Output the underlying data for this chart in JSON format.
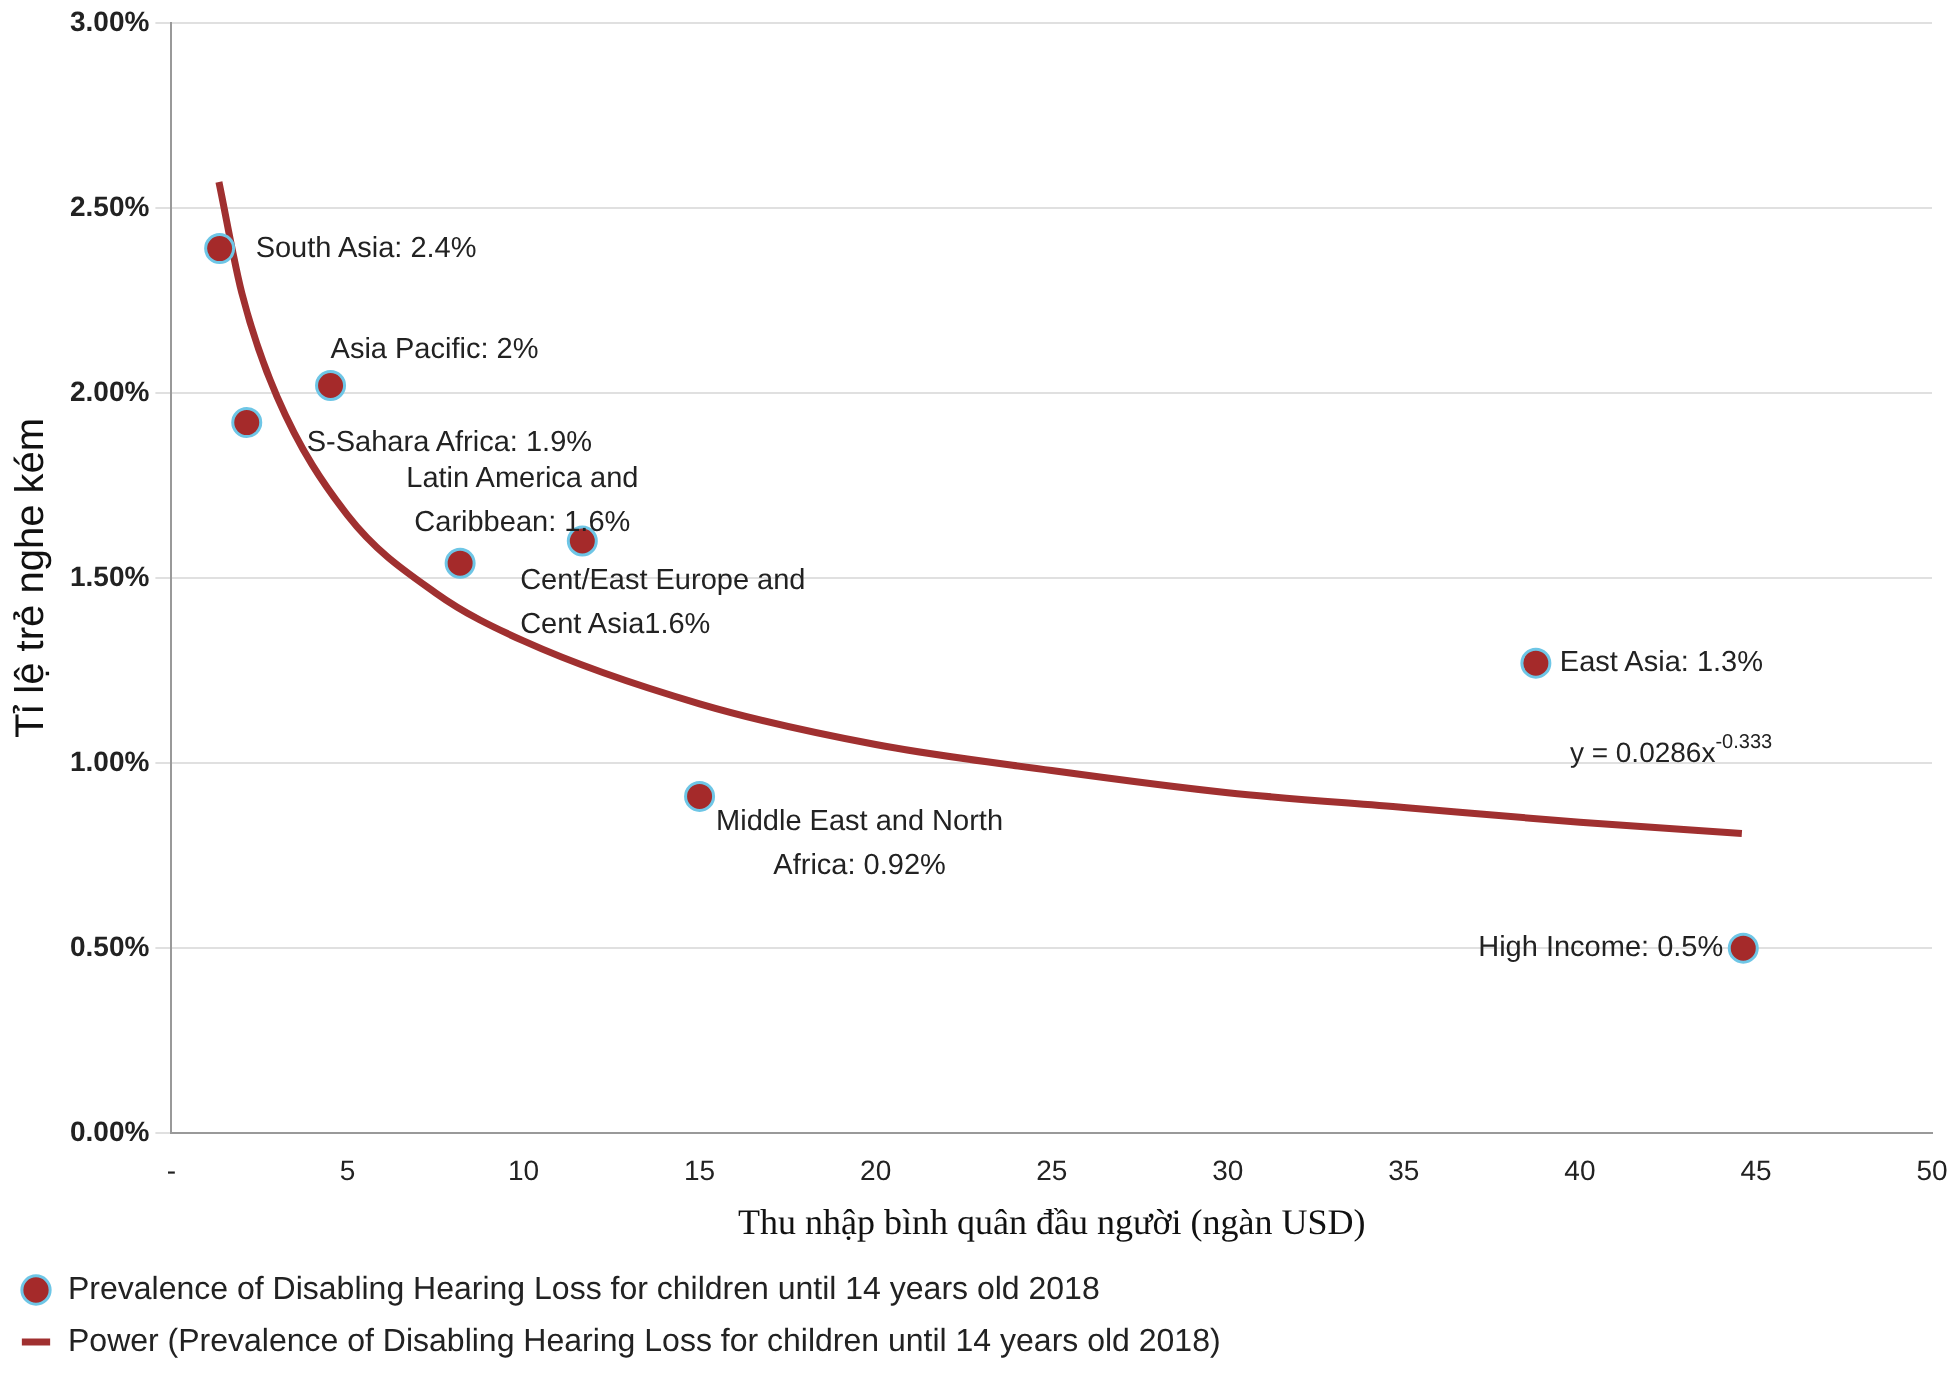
{
  "chart_data": {
    "type": "scatter",
    "xlabel": "Thu nhập bình quân đầu người (ngàn USD)",
    "ylabel": "Tỉ lệ trẻ nghe kém",
    "xlim": [
      0,
      50
    ],
    "xticks": [
      {
        "value": 0,
        "label": "-"
      },
      5,
      10,
      15,
      20,
      25,
      30,
      35,
      40,
      45,
      50
    ],
    "ylim": [
      0,
      3
    ],
    "yticks": [
      {
        "value": 0,
        "label": "0.00%"
      },
      {
        "value": 0.5,
        "label": "0.50%"
      },
      {
        "value": 1,
        "label": "1.00%"
      },
      {
        "value": 1.5,
        "label": "1.50%"
      },
      {
        "value": 2,
        "label": "2.00%"
      },
      {
        "value": 2.5,
        "label": "2.50%"
      },
      {
        "value": 3,
        "label": "3.00%"
      }
    ],
    "grid": "y",
    "legend": "bottom",
    "series": [
      {
        "name": "Prevalence of Disabling Hearing Loss for children until 14 years old 2018",
        "marker": "circle",
        "color": "#a52a2a",
        "x": [
          1.37,
          2.14,
          4.52,
          8.2,
          11.67,
          15.0,
          38.75,
          44.64
        ],
        "values": [
          2.39,
          1.92,
          2.02,
          1.54,
          1.6,
          0.91,
          1.27,
          0.5
        ]
      },
      {
        "name": "Power (Prevalence of Disabling Hearing Loss for children until 14 years old 2018)",
        "type": "line",
        "marker": "none",
        "color": "#a03030",
        "line_style": "solid",
        "x": [
          1.35,
          2,
          3,
          5,
          7.5,
          10,
          15,
          20,
          25,
          30,
          35,
          40,
          44.6
        ],
        "values": [
          2.57,
          2.27,
          1.99,
          1.67,
          1.46,
          1.33,
          1.16,
          1.05,
          0.98,
          0.92,
          0.88,
          0.84,
          0.81
        ]
      }
    ],
    "annotations": [
      {
        "text": "South Asia: 2.4%",
        "x": 1.37,
        "y": 2.39
      },
      {
        "text": "S-Sahara Africa: 1.9%",
        "x": 2.14,
        "y": 1.92
      },
      {
        "text": "Asia Pacific: 2%",
        "x": 4.52,
        "y": 2.02
      },
      {
        "text": "Cent/East Europe and Cent Asia1.6%",
        "x": 8.2,
        "y": 1.54
      },
      {
        "text": "Latin America and Caribbean: 1.6%",
        "x": 11.67,
        "y": 1.6
      },
      {
        "text": "Middle East and North Africa: 0.92%",
        "x": 15.0,
        "y": 0.91
      },
      {
        "text": "East Asia: 1.3%",
        "x": 38.75,
        "y": 1.27
      },
      {
        "text": "High Income: 0.5%",
        "x": 44.64,
        "y": 0.5
      },
      {
        "text": "y = 0.0286x$^{-0.333}$",
        "x": 40,
        "y": 0.84
      }
    ]
  }
}
